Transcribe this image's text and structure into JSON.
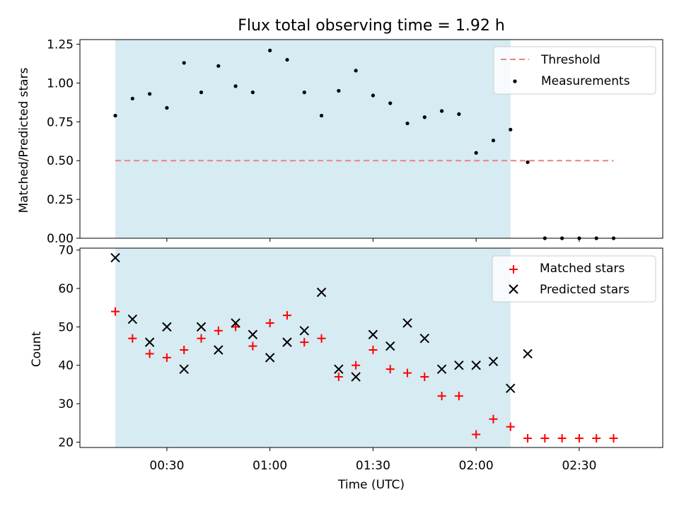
{
  "chart_data": [
    {
      "type": "scatter",
      "title": "Flux total observing time = 1.92 h",
      "xlabel": "",
      "ylabel": "Matched/Predicted stars",
      "xlim_minutes": [
        4.7,
        174.3
      ],
      "ylim": [
        0,
        1.28
      ],
      "yticks": [
        "0.00",
        "0.25",
        "0.50",
        "0.75",
        "1.00",
        "1.25"
      ],
      "ytick_values": [
        0,
        0.25,
        0.5,
        0.75,
        1.0,
        1.25
      ],
      "xtick_values_minutes": [
        30,
        60,
        90,
        120,
        150
      ],
      "shaded_span_minutes": [
        15,
        130
      ],
      "legend": {
        "placement": "top-right",
        "threshold_label": "Threshold",
        "measurements_label": "Measurements"
      },
      "threshold": {
        "value": 0.5,
        "x_range_minutes": [
          15,
          160
        ],
        "color": "#f08080"
      },
      "series": [
        {
          "name": "Measurements",
          "x_minutes": [
            15,
            20,
            25,
            30,
            35,
            40,
            45,
            50,
            55,
            60,
            65,
            70,
            75,
            80,
            85,
            90,
            95,
            100,
            105,
            110,
            115,
            120,
            125,
            130,
            135,
            140,
            145,
            150,
            155,
            160
          ],
          "values": [
            0.79,
            0.9,
            0.93,
            0.84,
            1.13,
            0.94,
            1.11,
            0.98,
            0.94,
            1.21,
            1.15,
            0.94,
            0.79,
            0.95,
            1.08,
            0.92,
            0.87,
            0.74,
            0.78,
            0.82,
            0.8,
            0.55,
            0.63,
            0.7,
            0.49,
            0,
            0,
            0,
            0,
            0
          ],
          "color": "#000000"
        }
      ]
    },
    {
      "type": "scatter",
      "title": "",
      "xlabel": "Time (UTC)",
      "ylabel": "Count",
      "xlim_minutes": [
        4.7,
        174.3
      ],
      "ylim": [
        18.6,
        70.5
      ],
      "yticks": [
        "20",
        "30",
        "40",
        "50",
        "60",
        "70"
      ],
      "ytick_values": [
        20,
        30,
        40,
        50,
        60,
        70
      ],
      "xticks": [
        "00:30",
        "01:00",
        "01:30",
        "02:00",
        "02:30"
      ],
      "xtick_values_minutes": [
        30,
        60,
        90,
        120,
        150
      ],
      "shaded_span_minutes": [
        15,
        130
      ],
      "legend": {
        "placement": "top-right"
      },
      "series": [
        {
          "name": "Matched stars",
          "marker": "plus",
          "color": "#ff0000",
          "x_minutes": [
            15,
            20,
            25,
            30,
            35,
            40,
            45,
            50,
            55,
            60,
            65,
            70,
            75,
            80,
            85,
            90,
            95,
            100,
            105,
            110,
            115,
            120,
            125,
            130,
            135,
            140,
            145,
            150,
            155,
            160
          ],
          "values": [
            54,
            47,
            43,
            42,
            44,
            47,
            49,
            50,
            45,
            51,
            53,
            46,
            47,
            37,
            40,
            44,
            39,
            38,
            37,
            32,
            32,
            22,
            26,
            24,
            21,
            21,
            21,
            21,
            21,
            21
          ]
        },
        {
          "name": "Predicted stars",
          "marker": "x",
          "color": "#000000",
          "x_minutes": [
            15,
            20,
            25,
            30,
            35,
            40,
            45,
            50,
            55,
            60,
            65,
            70,
            75,
            80,
            85,
            90,
            95,
            100,
            105,
            110,
            115,
            120,
            125,
            130,
            135
          ],
          "values": [
            68,
            52,
            46,
            50,
            39,
            50,
            44,
            51,
            48,
            42,
            46,
            49,
            59,
            39,
            37,
            48,
            45,
            51,
            47,
            39,
            40,
            40,
            41,
            34,
            43
          ]
        }
      ]
    }
  ],
  "colors": {
    "span_fill": "#add8e6",
    "axis": "#000000"
  }
}
